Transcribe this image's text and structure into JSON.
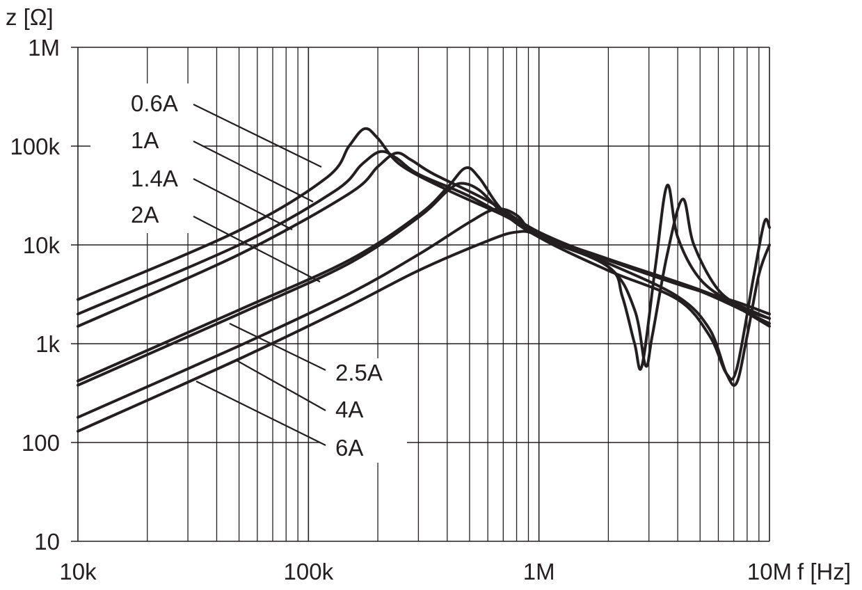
{
  "chart_data": {
    "type": "line",
    "xlabel": "f [Hz]",
    "ylabel": "z [Ω]",
    "x_scale": "log",
    "y_scale": "log",
    "xlim": [
      10000,
      10000000
    ],
    "ylim": [
      10,
      1000000
    ],
    "grid": true,
    "x_ticks": [
      {
        "value": 10000,
        "label": "10k"
      },
      {
        "value": 100000,
        "label": "100k"
      },
      {
        "value": 1000000,
        "label": "1M"
      },
      {
        "value": 10000000,
        "label": "10M"
      }
    ],
    "y_ticks": [
      {
        "value": 10,
        "label": "10"
      },
      {
        "value": 100,
        "label": "100"
      },
      {
        "value": 1000,
        "label": "1k"
      },
      {
        "value": 10000,
        "label": "10k"
      },
      {
        "value": 100000,
        "label": "100k"
      },
      {
        "value": 1000000,
        "label": "1M"
      }
    ],
    "series": [
      {
        "name": "0.6A",
        "x": [
          10000,
          50000,
          120000,
          150000,
          175000,
          200000,
          250000,
          400000,
          700000,
          1000000,
          2000000,
          4000000,
          7000000,
          10000000
        ],
        "y": [
          2800,
          14000,
          48000,
          100000,
          150000,
          120000,
          65000,
          36000,
          20000,
          13000,
          7000,
          4000,
          2700,
          2000
        ]
      },
      {
        "name": "1A",
        "x": [
          10000,
          50000,
          130000,
          170000,
          205000,
          240000,
          300000,
          500000,
          1000000,
          2000000,
          5000000,
          10000000
        ],
        "y": [
          2000,
          10000,
          35000,
          65000,
          88000,
          76000,
          52000,
          31000,
          13000,
          7200,
          3500,
          1800
        ]
      },
      {
        "name": "1.4A",
        "x": [
          10000,
          50000,
          150000,
          200000,
          240000,
          280000,
          350000,
          600000,
          1000000,
          2000000,
          5000000,
          10000000
        ],
        "y": [
          1500,
          8000,
          33000,
          62000,
          85000,
          72000,
          52000,
          28000,
          13500,
          7000,
          3400,
          1600
        ]
      },
      {
        "name": "2A",
        "x": [
          10000,
          50000,
          150000,
          300000,
          400000,
          480000,
          550000,
          700000,
          1000000,
          2000000,
          2300000,
          2600000,
          2800000,
          3200000,
          3600000,
          4000000,
          5000000,
          7000000,
          10000000
        ],
        "y": [
          420,
          2200,
          7000,
          20000,
          38000,
          60000,
          48000,
          22000,
          13000,
          6000,
          3000,
          1000,
          600,
          6000,
          40000,
          12000,
          4500,
          2500,
          1500
        ]
      },
      {
        "name": "2.5A",
        "x": [
          10000,
          50000,
          150000,
          300000,
          400000,
          460000,
          550000,
          700000,
          1000000,
          2000000,
          2600000,
          2900000,
          3100000,
          3600000,
          4200000,
          4700000,
          6000000,
          8000000,
          10000000
        ],
        "y": [
          380,
          2000,
          6500,
          19000,
          35000,
          42000,
          36000,
          21000,
          12000,
          6000,
          2200,
          600,
          1200,
          8000,
          29000,
          10000,
          3500,
          2200,
          1800
        ]
      },
      {
        "name": "4A",
        "x": [
          10000,
          50000,
          150000,
          300000,
          500000,
          650000,
          800000,
          1000000,
          2000000,
          4000000,
          5500000,
          6500000,
          7200000,
          8500000,
          9500000,
          10000000
        ],
        "y": [
          180,
          950,
          3200,
          8000,
          17000,
          23000,
          20000,
          12000,
          5500,
          2800,
          1200,
          500,
          550,
          4500,
          17000,
          15000
        ]
      },
      {
        "name": "6A",
        "x": [
          10000,
          50000,
          150000,
          300000,
          600000,
          800000,
          1000000,
          2000000,
          4000000,
          5500000,
          6500000,
          7200000,
          8000000,
          9000000,
          10000000
        ],
        "y": [
          130,
          700,
          2400,
          5500,
          11000,
          13500,
          12500,
          6500,
          3000,
          1400,
          500,
          400,
          1200,
          5000,
          10000
        ]
      }
    ],
    "annotations": [
      {
        "text": "0.6A",
        "series": "0.6A"
      },
      {
        "text": "1A",
        "series": "1A"
      },
      {
        "text": "1.4A",
        "series": "1.4A"
      },
      {
        "text": "2A",
        "series": "2A"
      },
      {
        "text": "2.5A",
        "series": "2.5A"
      },
      {
        "text": "4A",
        "series": "4A"
      },
      {
        "text": "6A",
        "series": "6A"
      }
    ]
  }
}
